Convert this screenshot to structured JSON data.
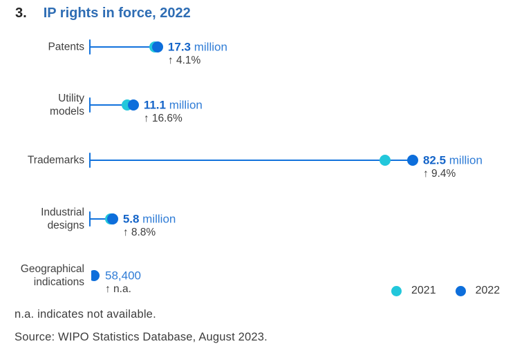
{
  "title": {
    "number": "3.",
    "text": "IP rights in force, 2022"
  },
  "colors": {
    "title_text": "#2e6db4",
    "series_2021": "#22c7db",
    "series_2022": "#0d6edb",
    "connector_line": "#1172dc",
    "value_number": "#1464c8",
    "value_unit": "#2f7cd6",
    "dark_text": "#3d3d3d"
  },
  "chart_data": {
    "type": "scatter",
    "subtype": "horizontal dot plot (dumbbell), values in millions of IP rights in force",
    "categories": [
      "Patents",
      "Utility models",
      "Trademarks",
      "Industrial designs",
      "Geographical indications"
    ],
    "series": [
      {
        "name": "2021",
        "color": "#22c7db",
        "values": [
          16.6,
          9.5,
          75.4,
          5.3,
          null
        ]
      },
      {
        "name": "2022",
        "color": "#0d6edb",
        "values": [
          17.3,
          11.1,
          82.5,
          5.8,
          0.0584
        ]
      }
    ],
    "xlim": [
      0,
      88
    ],
    "grid": false,
    "rows": [
      {
        "id": "patents",
        "label_lines": [
          "Patents"
        ],
        "value_2022_millions": 17.3,
        "value_2021_millions": 16.6,
        "value_label": "17.3",
        "value_unit": "million",
        "value_bold": true,
        "change_label": "↑ 4.1%",
        "axis_tick": true,
        "clipped_dot": false
      },
      {
        "id": "utility-models",
        "label_lines": [
          "Utility",
          "models"
        ],
        "value_2022_millions": 11.1,
        "value_2021_millions": 9.5,
        "value_label": "11.1",
        "value_unit": "million",
        "value_bold": true,
        "change_label": "↑ 16.6%",
        "axis_tick": true,
        "clipped_dot": false
      },
      {
        "id": "trademarks",
        "label_lines": [
          "Trademarks"
        ],
        "value_2022_millions": 82.5,
        "value_2021_millions": 75.4,
        "value_label": "82.5",
        "value_unit": "million",
        "value_bold": true,
        "change_label": "↑ 9.4%",
        "axis_tick": true,
        "clipped_dot": false
      },
      {
        "id": "industrial-designs",
        "label_lines": [
          "Industrial",
          "designs"
        ],
        "value_2022_millions": 5.8,
        "value_2021_millions": 5.3,
        "value_label": "5.8",
        "value_unit": "million",
        "value_bold": true,
        "change_label": "↑ 8.8%",
        "axis_tick": true,
        "clipped_dot": false
      },
      {
        "id": "geographical-indications",
        "label_lines": [
          "Geographical",
          "indications"
        ],
        "value_2022_millions": 0.0584,
        "value_2021_millions": null,
        "value_label": "58,400",
        "value_unit": "",
        "value_bold": false,
        "change_label": "↑ n.a.",
        "axis_tick": false,
        "clipped_dot": true
      }
    ],
    "legend": {
      "position": "bottom-right",
      "items": [
        {
          "label": "2021",
          "color": "#22c7db"
        },
        {
          "label": "2022",
          "color": "#0d6edb"
        }
      ]
    }
  },
  "footnotes": [
    "n.a. indicates not available.",
    "Source: WIPO Statistics Database, August 2023."
  ]
}
